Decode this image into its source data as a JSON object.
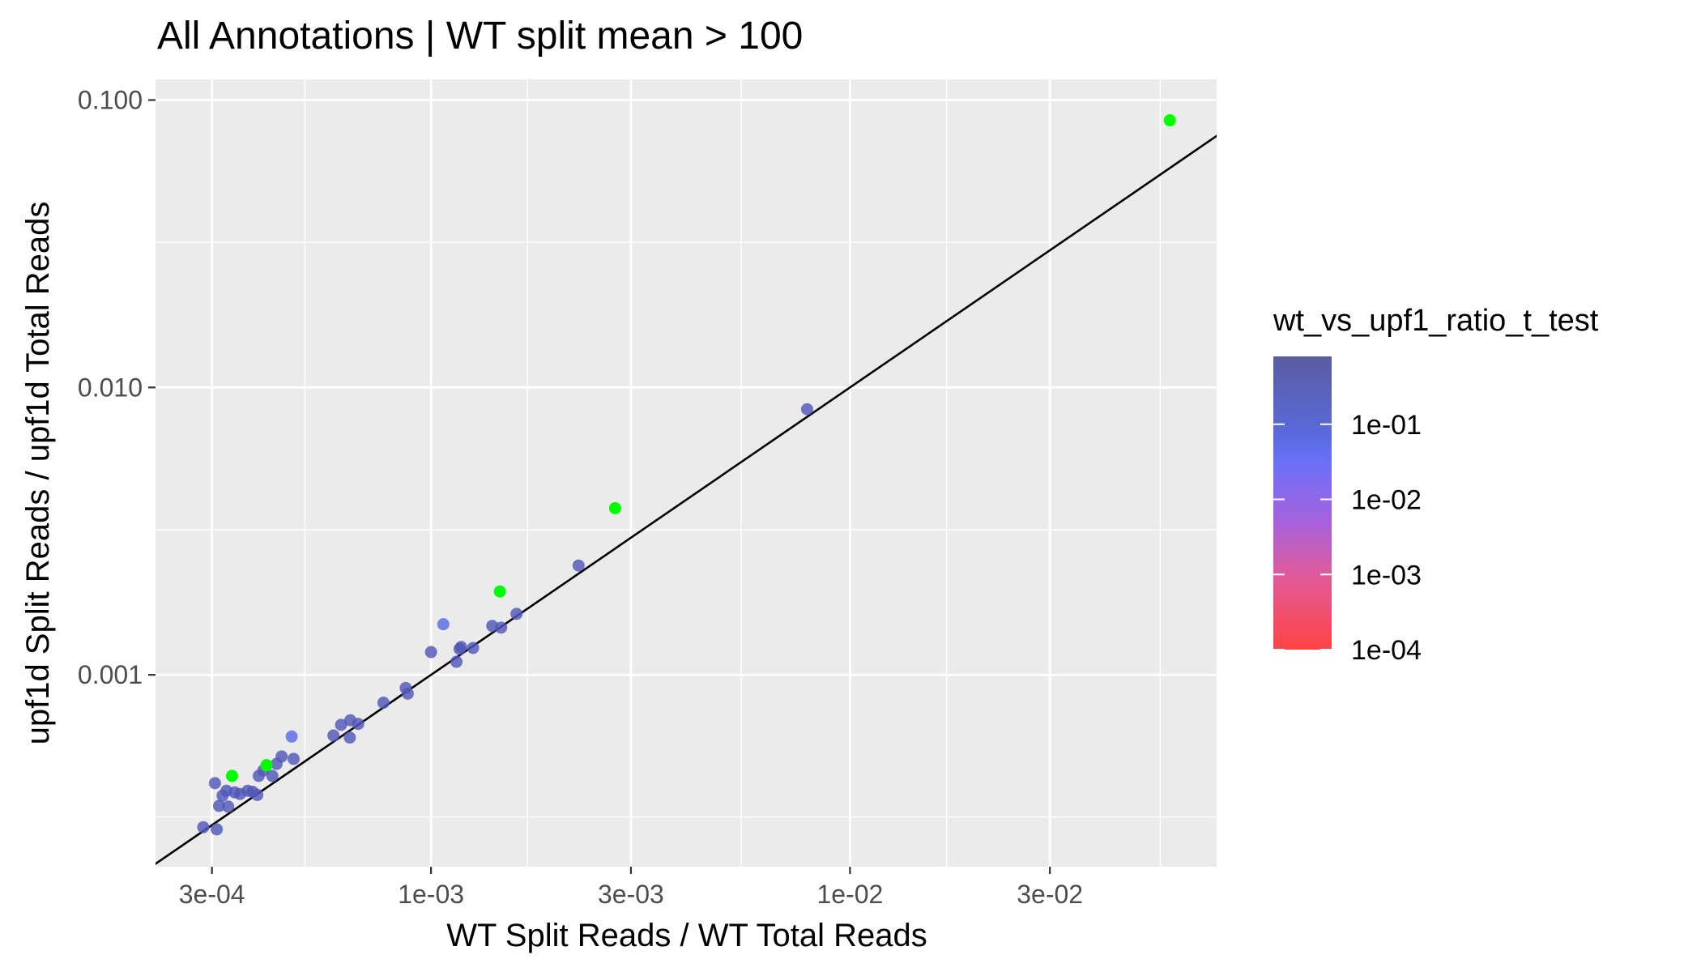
{
  "chart_data": {
    "type": "scatter",
    "title": "All Annotations | WT split mean > 100",
    "xlabel": "WT Split Reads / WT Total Reads",
    "ylabel": "upf1d Split Reads / upf1d Total Reads",
    "x_scale": "log10",
    "y_scale": "log10",
    "xlim": [
      0.00022,
      0.075
    ],
    "ylim": [
      0.000215,
      0.118
    ],
    "x_ticks": [
      0.0003,
      0.001,
      0.003,
      0.01,
      0.03
    ],
    "x_tick_labels": [
      "3e-04",
      "1e-03",
      "3e-03",
      "1e-02",
      "3e-02"
    ],
    "y_ticks": [
      0.001,
      0.01,
      0.1
    ],
    "y_tick_labels": [
      "0.001",
      "0.010",
      "0.100"
    ],
    "x_minor_ticks": [
      0.0005,
      0.0017,
      0.0055,
      0.017,
      0.055
    ],
    "y_minor_ticks": [
      0.00032,
      0.0032,
      0.032
    ],
    "grid": true,
    "reference_line": {
      "type": "identity",
      "label": "y = x"
    },
    "legend": {
      "title": "wt_vs_upf1_ratio_t_test",
      "position": "right",
      "scale": "log10",
      "range": [
        0.0001,
        0.8
      ],
      "tick_values": [
        0.1,
        0.01,
        0.001,
        0.0001
      ],
      "tick_labels": [
        "1e-01",
        "1e-02",
        "1e-03",
        "1e-04"
      ],
      "colors": {
        "high": "#5a5ca0",
        "mid_high": "#6a70f0",
        "mid": "#b060d8",
        "low": "#ff4444"
      },
      "na_color": "#00ff00"
    },
    "points": [
      {
        "x": 0.000286,
        "y": 0.000295,
        "p": 0.5
      },
      {
        "x": 0.000308,
        "y": 0.00029,
        "p": 0.5
      },
      {
        "x": 0.000305,
        "y": 0.00042,
        "p": 0.3
      },
      {
        "x": 0.000312,
        "y": 0.00035,
        "p": 0.4
      },
      {
        "x": 0.000318,
        "y": 0.00038,
        "p": 0.4
      },
      {
        "x": 0.000325,
        "y": 0.000395,
        "p": 0.5
      },
      {
        "x": 0.000328,
        "y": 0.000348,
        "p": 0.5
      },
      {
        "x": 0.00034,
        "y": 0.00039,
        "p": 0.5
      },
      {
        "x": 0.00035,
        "y": 0.000385,
        "p": 0.5
      },
      {
        "x": 0.000365,
        "y": 0.000395,
        "p": 0.5
      },
      {
        "x": 0.000375,
        "y": 0.000392,
        "p": 0.5
      },
      {
        "x": 0.000385,
        "y": 0.000382,
        "p": 0.5
      },
      {
        "x": 0.000388,
        "y": 0.000445,
        "p": 0.5
      },
      {
        "x": 0.000398,
        "y": 0.000465,
        "p": 0.5
      },
      {
        "x": 0.000418,
        "y": 0.000445,
        "p": 0.5
      },
      {
        "x": 0.000428,
        "y": 0.00049,
        "p": 0.5
      },
      {
        "x": 0.00044,
        "y": 0.00052,
        "p": 0.5
      },
      {
        "x": 0.000465,
        "y": 0.00061,
        "p": 0.15
      },
      {
        "x": 0.00047,
        "y": 0.00051,
        "p": 0.5
      },
      {
        "x": 0.000585,
        "y": 0.000615,
        "p": 0.5
      },
      {
        "x": 0.00061,
        "y": 0.00067,
        "p": 0.5
      },
      {
        "x": 0.00064,
        "y": 0.000605,
        "p": 0.5
      },
      {
        "x": 0.000642,
        "y": 0.000695,
        "p": 0.5
      },
      {
        "x": 0.00067,
        "y": 0.000675,
        "p": 0.5
      },
      {
        "x": 0.00077,
        "y": 0.0008,
        "p": 0.5
      },
      {
        "x": 0.00087,
        "y": 0.0009,
        "p": 0.5
      },
      {
        "x": 0.00088,
        "y": 0.00086,
        "p": 0.5
      },
      {
        "x": 0.001,
        "y": 0.0012,
        "p": 0.3
      },
      {
        "x": 0.00107,
        "y": 0.0015,
        "p": 0.15
      },
      {
        "x": 0.00115,
        "y": 0.00111,
        "p": 0.5
      },
      {
        "x": 0.00117,
        "y": 0.00123,
        "p": 0.5
      },
      {
        "x": 0.00118,
        "y": 0.00125,
        "p": 0.5
      },
      {
        "x": 0.00126,
        "y": 0.00124,
        "p": 0.5
      },
      {
        "x": 0.0014,
        "y": 0.00148,
        "p": 0.5
      },
      {
        "x": 0.00147,
        "y": 0.00146,
        "p": 0.5
      },
      {
        "x": 0.0016,
        "y": 0.00163,
        "p": 0.5
      },
      {
        "x": 0.00225,
        "y": 0.0024,
        "p": 0.5
      },
      {
        "x": 0.0079,
        "y": 0.0084,
        "p": 0.5
      },
      {
        "x": 0.000335,
        "y": 0.000445,
        "p": null
      },
      {
        "x": 0.000405,
        "y": 0.000485,
        "p": null
      },
      {
        "x": 0.00146,
        "y": 0.00195,
        "p": null
      },
      {
        "x": 0.00275,
        "y": 0.0038,
        "p": null
      },
      {
        "x": 0.058,
        "y": 0.085,
        "p": null
      }
    ]
  }
}
